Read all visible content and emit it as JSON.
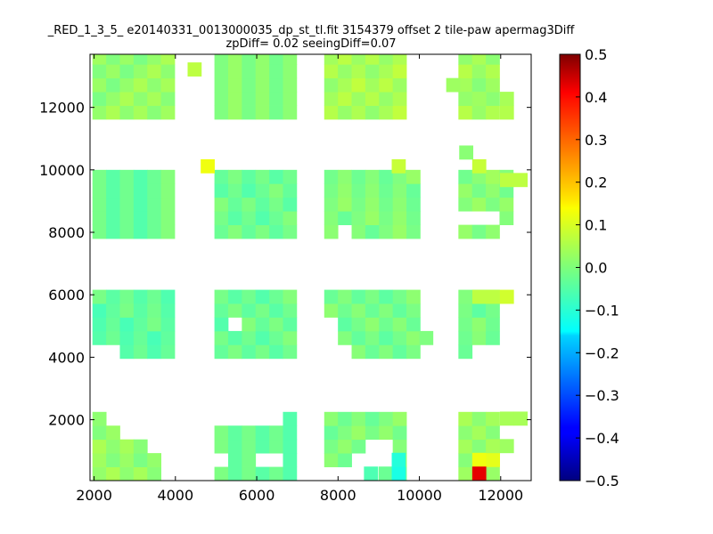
{
  "chart_data": {
    "type": "heatmap",
    "title": "_RED_1_3_5_ e20140331_0013000035_dp_st_tl.fit 3154379 offset 2 tile-paw apermag3Diff",
    "subtitle": "zpDiff= 0.02 seeingDiff=0.07",
    "xlabel": "",
    "ylabel": "",
    "xlim": [
      1900,
      12750
    ],
    "ylim": [
      50,
      13700
    ],
    "x_ticks": [
      "2000",
      "4000",
      "6000",
      "8000",
      "10000",
      "12000"
    ],
    "x_tick_values": [
      2000,
      4000,
      6000,
      8000,
      10000,
      12000
    ],
    "y_ticks": [
      "2000",
      "4000",
      "6000",
      "8000",
      "10000",
      "12000"
    ],
    "y_tick_values": [
      2000,
      4000,
      6000,
      8000,
      10000,
      12000
    ],
    "cell_size": [
      337,
      440
    ],
    "colorbar": {
      "colormap": "jet",
      "range": [
        -0.5,
        0.5
      ],
      "ticks": [
        "0.5",
        "0.4",
        "0.3",
        "0.2",
        "0.1",
        "0.0",
        "−0.1",
        "−0.2",
        "−0.3",
        "−0.4",
        "−0.5"
      ],
      "tick_values": [
        0.5,
        0.4,
        0.3,
        0.2,
        0.1,
        0.0,
        -0.1,
        -0.2,
        -0.3,
        -0.4,
        -0.5
      ]
    },
    "grid": false,
    "blocks": [
      {
        "x": 1960,
        "y": 50,
        "cols": 5,
        "rows": 5,
        "missing": [
          [
            2,
            4
          ],
          [
            3,
            4
          ],
          [
            3,
            3
          ],
          [
            3,
            2
          ],
          [
            4,
            4
          ],
          [
            4,
            3
          ],
          [
            4,
            2
          ],
          [
            4,
            1
          ]
        ],
        "value": 0.02,
        "mod": 13
      },
      {
        "x": 4960,
        "y": 50,
        "cols": 6,
        "rows": 5,
        "missing": [
          [
            1,
            0
          ],
          [
            1,
            3
          ],
          [
            1,
            4
          ],
          [
            4,
            1
          ],
          [
            4,
            0
          ],
          [
            4,
            4
          ],
          [
            4,
            3
          ],
          [
            4,
            2
          ]
        ],
        "value": -0.02,
        "mod": 11
      },
      {
        "x": 7660,
        "y": 50,
        "cols": 6,
        "rows": 5,
        "missing": [
          [
            0,
            3
          ],
          [
            0,
            2
          ],
          [
            0,
            1
          ],
          [
            0,
            0
          ],
          [
            1,
            4
          ],
          [
            1,
            3
          ],
          [
            1,
            2
          ],
          [
            2,
            4
          ],
          [
            2,
            3
          ]
        ],
        "value": 0.0,
        "mod": 17
      },
      {
        "x": 10960,
        "y": 50,
        "cols": 3,
        "rows": 5,
        "missing": [
          [
            0,
            4
          ]
        ],
        "value": 0.03,
        "mod": 7
      },
      {
        "x": 1960,
        "y": 3960,
        "cols": 6,
        "rows": 5,
        "missing": [
          [
            0,
            0
          ],
          [
            0,
            1
          ]
        ],
        "value": -0.03,
        "mod": 19
      },
      {
        "x": 4960,
        "y": 3960,
        "cols": 6,
        "rows": 5,
        "missing": [
          [
            2,
            1
          ]
        ],
        "value": -0.02,
        "mod": 5
      },
      {
        "x": 7660,
        "y": 3960,
        "cols": 7,
        "rows": 5,
        "missing": [
          [
            0,
            1
          ],
          [
            0,
            0
          ],
          [
            1,
            0
          ],
          [
            2,
            0
          ]
        ],
        "value": -0.01,
        "mod": 23
      },
      {
        "x": 10960,
        "y": 3960,
        "cols": 3,
        "rows": 5,
        "missing": [
          [
            0,
            1
          ],
          [
            0,
            2
          ]
        ],
        "value": -0.01,
        "mod": 3
      },
      {
        "x": 1960,
        "y": 7800,
        "cols": 6,
        "rows": 5,
        "missing": [],
        "value": -0.02,
        "mod": 29
      },
      {
        "x": 4960,
        "y": 7800,
        "cols": 6,
        "rows": 5,
        "missing": [],
        "value": -0.02,
        "mod": 31
      },
      {
        "x": 7660,
        "y": 7800,
        "cols": 7,
        "rows": 5,
        "missing": [
          [
            0,
            1
          ]
        ],
        "value": 0.0,
        "mod": 37
      },
      {
        "x": 10960,
        "y": 7800,
        "cols": 4,
        "rows": 5,
        "missing": [
          [
            0,
            3
          ],
          [
            1,
            2
          ],
          [
            1,
            1
          ],
          [
            1,
            0
          ]
        ],
        "value": 0.01,
        "mod": 41
      },
      {
        "x": 1960,
        "y": 11620,
        "cols": 6,
        "rows": 5,
        "missing": [],
        "value": 0.02,
        "mod": 43
      },
      {
        "x": 4960,
        "y": 11620,
        "cols": 6,
        "rows": 5,
        "missing": [],
        "value": 0.0,
        "mod": 47
      },
      {
        "x": 7660,
        "y": 11620,
        "cols": 6,
        "rows": 5,
        "missing": [],
        "value": 0.04,
        "mod": 53
      },
      {
        "x": 10960,
        "y": 11620,
        "cols": 3,
        "rows": 5,
        "missing": [],
        "value": 0.03,
        "mod": 59
      }
    ],
    "extra_cells": [
      {
        "x": 4622,
        "y": 9900,
        "value": 0.11
      },
      {
        "x": 9320,
        "y": 9900,
        "value": 0.07
      },
      {
        "x": 11300,
        "y": 9900,
        "value": 0.07
      },
      {
        "x": 11980,
        "y": 9460,
        "value": 0.06
      },
      {
        "x": 12317,
        "y": 9460,
        "value": 0.06
      },
      {
        "x": 9997,
        "y": 4400,
        "value": 0.0
      },
      {
        "x": 11300,
        "y": 5720,
        "value": 0.06
      },
      {
        "x": 11637,
        "y": 5720,
        "value": 0.06
      },
      {
        "x": 11980,
        "y": 5720,
        "value": 0.08
      },
      {
        "x": 11980,
        "y": 1820,
        "value": 0.04
      },
      {
        "x": 12317,
        "y": 1820,
        "value": 0.04
      },
      {
        "x": 11637,
        "y": 500,
        "value": 0.1
      },
      {
        "x": 11300,
        "y": 500,
        "value": 0.11
      },
      {
        "x": 11637,
        "y": 940,
        "value": 0.04
      },
      {
        "x": 11980,
        "y": 940,
        "value": 0.03
      },
      {
        "x": 11300,
        "y": 60,
        "value": 0.4
      },
      {
        "x": 8637,
        "y": 60,
        "value": -0.05
      },
      {
        "x": 8997,
        "y": 60,
        "value": -0.02
      },
      {
        "x": 9320,
        "y": 60,
        "value": -0.1
      },
      {
        "x": 9320,
        "y": 500,
        "value": -0.09
      },
      {
        "x": 10980,
        "y": 12060,
        "value": 0.02
      },
      {
        "x": 10660,
        "y": 12500,
        "value": 0.03
      },
      {
        "x": 11300,
        "y": 12060,
        "value": 0.03
      },
      {
        "x": 11980,
        "y": 11620,
        "value": 0.05
      },
      {
        "x": 11980,
        "y": 12060,
        "value": 0.04
      },
      {
        "x": 4300,
        "y": 13000,
        "value": 0.06
      },
      {
        "x": 10980,
        "y": 10340,
        "value": 0.01
      }
    ]
  }
}
